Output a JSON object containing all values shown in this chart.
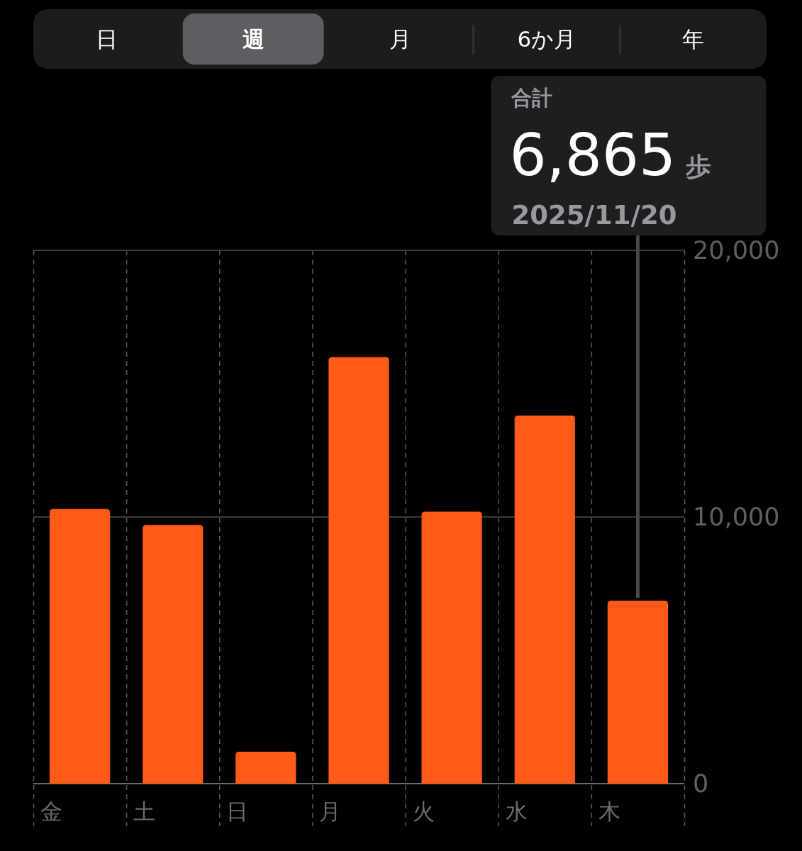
{
  "chart_data": {
    "type": "bar",
    "categories": [
      "金",
      "土",
      "日",
      "月",
      "火",
      "水",
      "木"
    ],
    "values": [
      10300,
      9700,
      1200,
      16000,
      10200,
      13800,
      6865
    ],
    "color": "#ff5a17",
    "ylim": [
      0,
      20000
    ],
    "yticks": [
      0,
      {
        "value": 10000,
        "label": "10,000"
      },
      {
        "value": 20000,
        "label": "20,000"
      }
    ],
    "grid": true,
    "annotations": [
      "日",
      "週",
      "月",
      "6か月",
      "年",
      "合計",
      "6,865 歩",
      "2025/11/20"
    ]
  }
}
